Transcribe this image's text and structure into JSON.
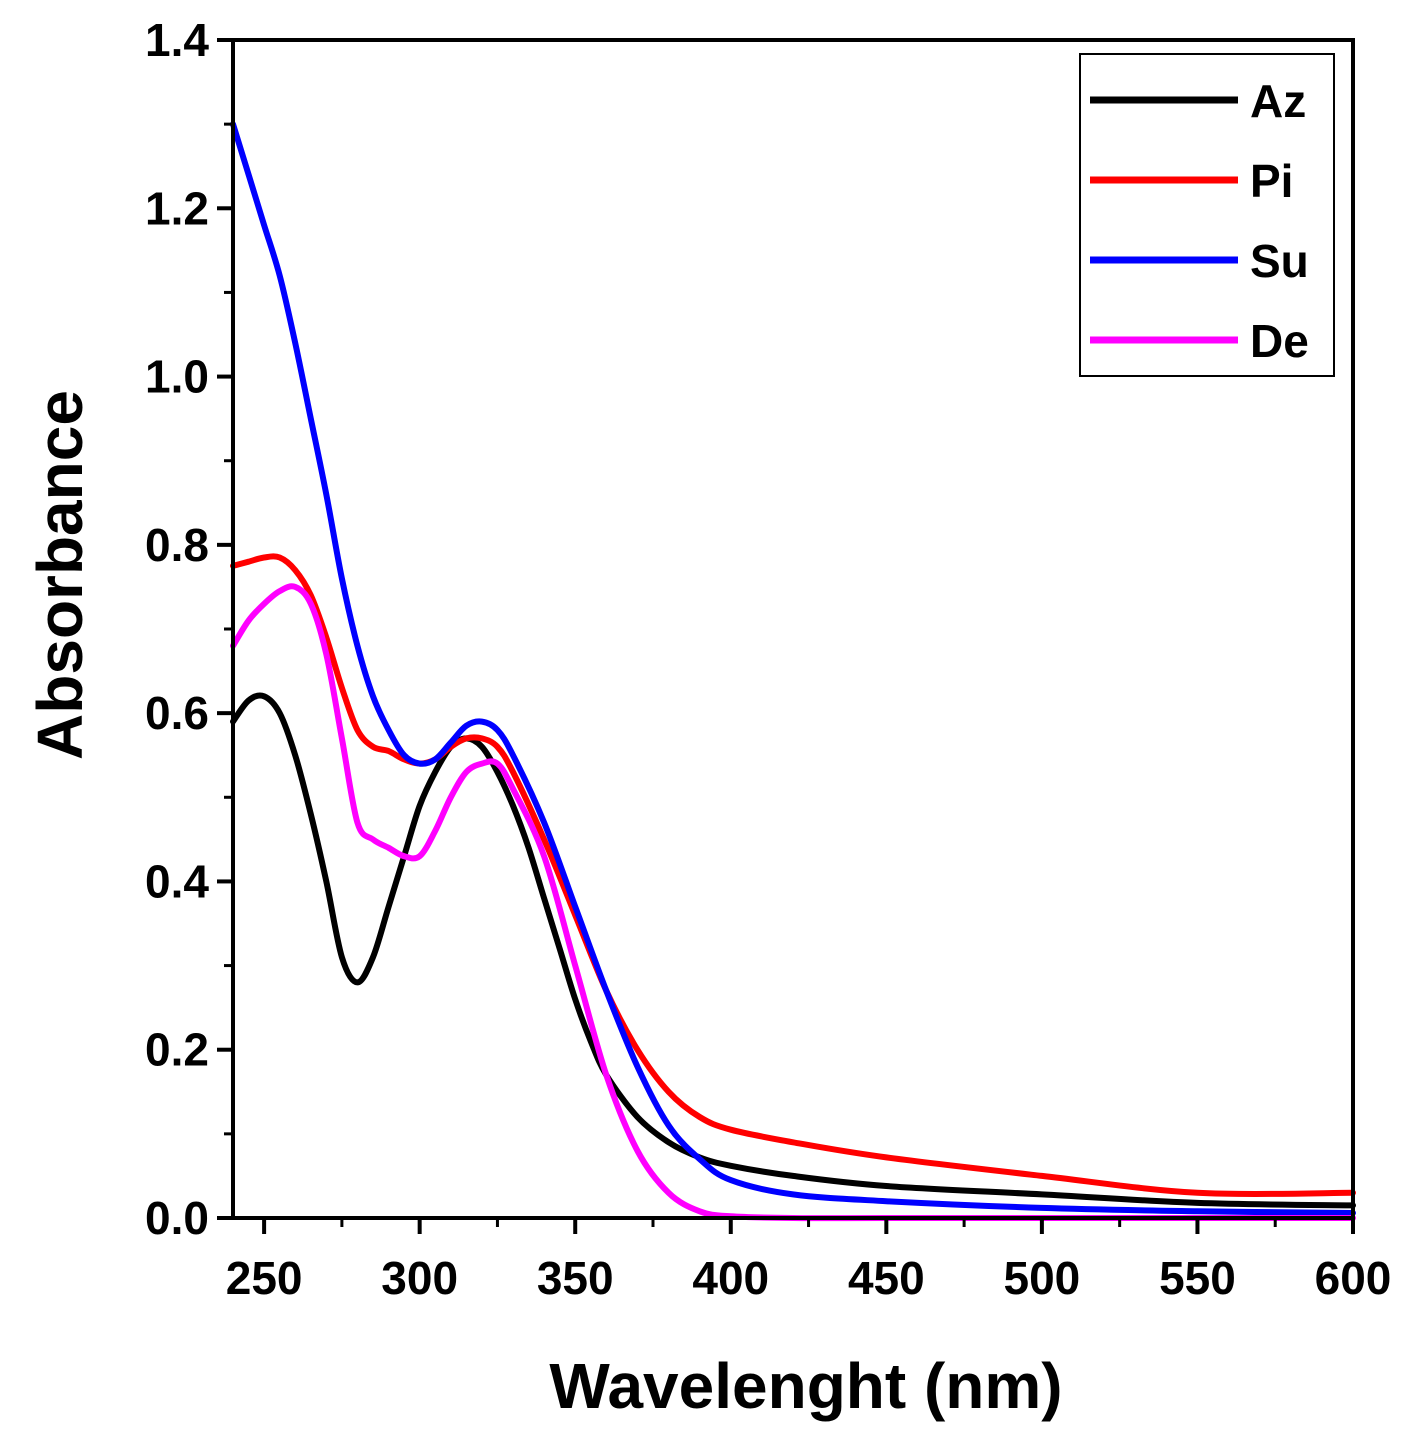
{
  "chart_data": {
    "type": "line",
    "title": "",
    "xlabel": "Wavelenght (nm)",
    "ylabel": "Absorbance",
    "xlim": [
      240,
      600
    ],
    "ylim": [
      0.0,
      1.4
    ],
    "x_ticks": [
      250,
      300,
      350,
      400,
      450,
      500,
      550,
      600
    ],
    "x_tick_labels": [
      "250",
      "300",
      "350",
      "400",
      "450",
      "500",
      "550",
      "600"
    ],
    "y_ticks": [
      0.0,
      0.2,
      0.4,
      0.6,
      0.8,
      1.0,
      1.2,
      1.4
    ],
    "y_tick_labels": [
      "0.0",
      "0.2",
      "0.4",
      "0.6",
      "0.8",
      "1.0",
      "1.2",
      "1.4"
    ],
    "grid": false,
    "legend_position": "top-right",
    "series": [
      {
        "name": "Az",
        "color": "#000000",
        "x": [
          240,
          245,
          250,
          255,
          260,
          265,
          270,
          275,
          280,
          285,
          290,
          295,
          300,
          305,
          310,
          315,
          320,
          325,
          330,
          335,
          340,
          345,
          350,
          355,
          360,
          370,
          380,
          390,
          400,
          420,
          450,
          500,
          550,
          600
        ],
        "y": [
          0.59,
          0.615,
          0.62,
          0.6,
          0.55,
          0.48,
          0.4,
          0.31,
          0.28,
          0.31,
          0.37,
          0.43,
          0.49,
          0.53,
          0.56,
          0.57,
          0.56,
          0.53,
          0.49,
          0.44,
          0.38,
          0.32,
          0.26,
          0.21,
          0.17,
          0.12,
          0.09,
          0.072,
          0.062,
          0.05,
          0.038,
          0.028,
          0.018,
          0.015
        ]
      },
      {
        "name": "Pi",
        "color": "#ff0000",
        "x": [
          240,
          245,
          250,
          255,
          260,
          265,
          270,
          275,
          280,
          285,
          290,
          295,
          300,
          305,
          310,
          315,
          320,
          325,
          330,
          340,
          350,
          360,
          370,
          380,
          390,
          400,
          420,
          450,
          500,
          550,
          600
        ],
        "y": [
          0.775,
          0.78,
          0.785,
          0.785,
          0.77,
          0.74,
          0.69,
          0.63,
          0.58,
          0.56,
          0.555,
          0.545,
          0.54,
          0.545,
          0.56,
          0.57,
          0.57,
          0.56,
          0.53,
          0.45,
          0.36,
          0.27,
          0.2,
          0.15,
          0.12,
          0.105,
          0.09,
          0.072,
          0.05,
          0.03,
          0.03
        ]
      },
      {
        "name": "Su",
        "color": "#0000ff",
        "x": [
          240,
          245,
          250,
          255,
          260,
          265,
          270,
          275,
          280,
          285,
          290,
          295,
          300,
          305,
          310,
          315,
          320,
          325,
          330,
          340,
          350,
          360,
          370,
          380,
          390,
          400,
          420,
          450,
          500,
          550,
          600
        ],
        "y": [
          1.3,
          1.24,
          1.18,
          1.12,
          1.04,
          0.95,
          0.86,
          0.76,
          0.68,
          0.62,
          0.58,
          0.55,
          0.54,
          0.545,
          0.565,
          0.585,
          0.59,
          0.58,
          0.55,
          0.47,
          0.37,
          0.27,
          0.18,
          0.11,
          0.07,
          0.045,
          0.028,
          0.02,
          0.012,
          0.008,
          0.006
        ]
      },
      {
        "name": "De",
        "color": "#ff00ff",
        "x": [
          240,
          245,
          250,
          255,
          260,
          265,
          270,
          275,
          280,
          285,
          290,
          295,
          300,
          305,
          310,
          315,
          320,
          325,
          330,
          340,
          350,
          360,
          370,
          380,
          390,
          400,
          420,
          450,
          500,
          550,
          600
        ],
        "y": [
          0.68,
          0.71,
          0.73,
          0.745,
          0.75,
          0.73,
          0.67,
          0.57,
          0.47,
          0.45,
          0.44,
          0.43,
          0.43,
          0.46,
          0.5,
          0.53,
          0.54,
          0.54,
          0.51,
          0.43,
          0.3,
          0.17,
          0.08,
          0.03,
          0.008,
          0.002,
          0.0,
          0.0,
          0.0,
          0.0,
          0.0
        ]
      }
    ]
  }
}
